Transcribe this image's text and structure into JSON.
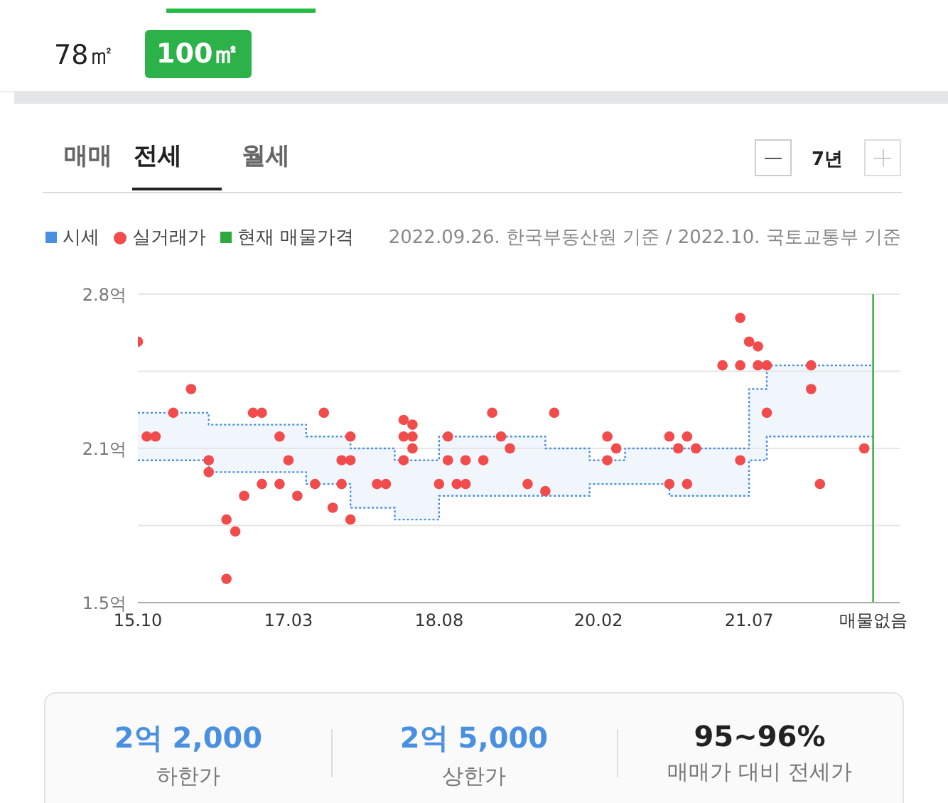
{
  "chart_data": {
    "type": "step",
    "annotations": [
      "78㎡",
      "100㎡",
      "매매",
      "전세",
      "월세",
      "7년",
      "2022.09.26. 한국부동산원 기준 / 2022.10. 국토교통부 기준",
      "2억 2,000",
      "하한가",
      "2억 5,000",
      "상한가",
      "95~96%",
      "매매가 대비 전세가"
    ],
    "series": [
      {
        "name": "시세",
        "color": "#4a90e2",
        "line_style": "dotted",
        "x": [
          "2015-10",
          "2016-06",
          "2017-05",
          "2017-10",
          "2018-03",
          "2018-08",
          "2019-08",
          "2020-01",
          "2020-05",
          "2020-10",
          "2021-07",
          "2021-09",
          "2022-09"
        ],
        "values": [
          2.3,
          2.25,
          2.2,
          2.15,
          2.1,
          2.2,
          2.15,
          2.1,
          2.15,
          2.15,
          2.4,
          2.5,
          2.5
        ]
      },
      {
        "color": "#4a90e2",
        "line_style": "dotted",
        "x": [
          "2015-10",
          "2016-06",
          "2017-05",
          "2017-10",
          "2018-03",
          "2018-08",
          "2019-08",
          "2020-01",
          "2020-05",
          "2020-10",
          "2021-07",
          "2021-09",
          "2022-09"
        ],
        "values": [
          2.1,
          2.05,
          2.0,
          1.9,
          1.85,
          1.95,
          1.95,
          2.0,
          2.0,
          1.95,
          2.1,
          2.2,
          2.2
        ]
      },
      {
        "name": "실거래가",
        "type": "scatter",
        "color": "#f24b4b",
        "marker": "circle",
        "x": [
          "2015-10",
          "2015-11",
          "2015-12",
          "2016-02",
          "2016-04",
          "2016-06",
          "2016-06",
          "2016-08",
          "2016-08",
          "2016-09",
          "2016-10",
          "2016-11",
          "2016-12",
          "2016-12",
          "2017-02",
          "2017-02",
          "2017-03",
          "2017-04",
          "2017-06",
          "2017-07",
          "2017-08",
          "2017-09",
          "2017-09",
          "2017-10",
          "2017-10",
          "2017-10",
          "2018-01",
          "2018-02",
          "2018-04",
          "2018-04",
          "2018-04",
          "2018-05",
          "2018-05",
          "2018-05",
          "2018-08",
          "2018-09",
          "2018-09",
          "2018-10",
          "2018-11",
          "2018-11",
          "2019-01",
          "2019-02",
          "2019-03",
          "2019-04",
          "2019-06",
          "2019-08",
          "2019-09",
          "2020-03",
          "2020-03",
          "2020-04",
          "2020-10",
          "2020-10",
          "2020-11",
          "2020-12",
          "2020-12",
          "2021-01",
          "2021-04",
          "2021-06",
          "2021-06",
          "2021-06",
          "2021-07",
          "2021-08",
          "2021-08",
          "2021-09",
          "2021-09",
          "2022-02",
          "2022-02",
          "2022-03",
          "2022-08"
        ],
        "values": [
          2.6,
          2.2,
          2.2,
          2.3,
          2.4,
          2.1,
          2.05,
          1.85,
          1.6,
          1.8,
          1.95,
          2.3,
          2.3,
          2.0,
          2.2,
          2.0,
          2.1,
          1.95,
          2.0,
          2.3,
          1.9,
          2.1,
          2.0,
          2.2,
          2.1,
          1.85,
          2.0,
          2.0,
          2.27,
          2.2,
          2.1,
          2.25,
          2.2,
          2.15,
          2.0,
          2.2,
          2.1,
          2.0,
          2.1,
          2.0,
          2.1,
          2.3,
          2.2,
          2.15,
          2.0,
          1.97,
          2.3,
          2.2,
          2.1,
          2.15,
          2.2,
          2.0,
          2.15,
          2.2,
          2.0,
          2.15,
          2.5,
          2.5,
          2.7,
          2.1,
          2.6,
          2.58,
          2.5,
          2.5,
          2.3,
          2.5,
          2.4,
          2.0,
          2.15
        ]
      }
    ],
    "ref_lines": [
      {
        "axis": "x",
        "value": "2022-09",
        "label": "현재 매물가격",
        "color": "#2eaa3c"
      }
    ],
    "xlim": [
      "2015-10",
      "2022-12"
    ],
    "xticks": [
      {
        "value": "2015-10",
        "label": "15.10"
      },
      {
        "value": "2017-03",
        "label": "17.03"
      },
      {
        "value": "2018-08",
        "label": "18.08"
      },
      {
        "value": "2020-02",
        "label": "20.02"
      },
      {
        "value": "2021-07",
        "label": "21.07"
      },
      {
        "value": "2022-09",
        "label": "매물없음"
      }
    ],
    "ylim": [
      1.5,
      2.8
    ],
    "yticks": [
      {
        "value": 1.5,
        "label": "1.5억"
      },
      {
        "value": 1.825,
        "label": null
      },
      {
        "value": 2.15,
        "label": "2.1억"
      },
      {
        "value": 2.475,
        "label": null
      },
      {
        "value": 2.8,
        "label": "2.8억"
      }
    ],
    "grid": "y",
    "legend": "top left"
  }
}
